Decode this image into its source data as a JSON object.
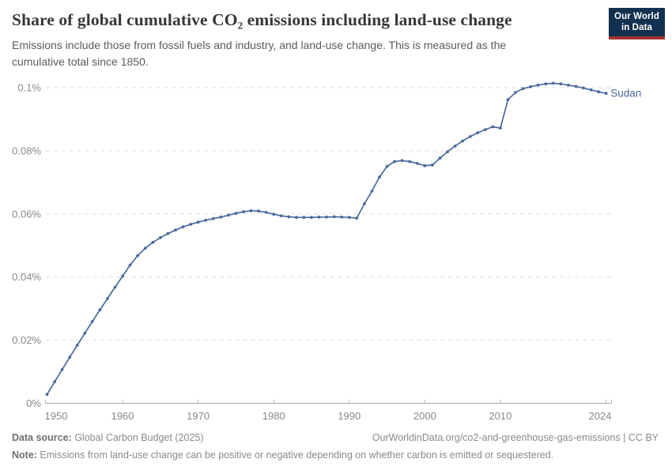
{
  "header": {
    "title": "Share of global cumulative CO₂ emissions including land-use change",
    "subtitle": "Emissions include those from fossil fuels and industry, and land-use change. This is measured as the cumulative total since 1850."
  },
  "logo": {
    "line1": "Our World",
    "line2": "in Data",
    "bg_color": "#12304f",
    "accent_color": "#a63232"
  },
  "chart_data": {
    "type": "line",
    "title": "Share of global cumulative CO₂ emissions including land-use change",
    "entity": "Sudan",
    "unit": "%",
    "grid": "horizontal-dashed",
    "legend_position": "end-of-line-label",
    "xlim": [
      1950,
      2024
    ],
    "ylim": [
      0,
      0.1
    ],
    "x_ticks": [
      1950,
      1960,
      1970,
      1980,
      1990,
      2000,
      2010,
      2024
    ],
    "x_tick_labels": [
      "1950",
      "1960",
      "1970",
      "1980",
      "1990",
      "2000",
      "2010",
      "2024"
    ],
    "y_ticks": [
      0,
      0.02,
      0.04,
      0.06,
      0.08,
      0.1
    ],
    "y_tick_labels": [
      "0%",
      "0.02%",
      "0.04%",
      "0.06%",
      "0.08%",
      "0.1%"
    ],
    "series": [
      {
        "name": "Sudan",
        "color": "#4c6a9c",
        "x": [
          1950,
          1951,
          1952,
          1953,
          1954,
          1955,
          1956,
          1957,
          1958,
          1959,
          1960,
          1961,
          1962,
          1963,
          1964,
          1965,
          1966,
          1967,
          1968,
          1969,
          1970,
          1971,
          1972,
          1973,
          1974,
          1975,
          1976,
          1977,
          1978,
          1979,
          1980,
          1981,
          1982,
          1983,
          1984,
          1985,
          1986,
          1987,
          1988,
          1989,
          1990,
          1991,
          1992,
          1993,
          1994,
          1995,
          1996,
          1997,
          1998,
          1999,
          2000,
          2001,
          2002,
          2003,
          2004,
          2005,
          2006,
          2007,
          2008,
          2009,
          2010,
          2011,
          2012,
          2013,
          2014,
          2015,
          2016,
          2017,
          2018,
          2019,
          2020,
          2021,
          2022,
          2023,
          2024
        ],
        "values": [
          0.0028,
          0.0068,
          0.0107,
          0.0146,
          0.0184,
          0.0222,
          0.0259,
          0.0296,
          0.0332,
          0.0368,
          0.0403,
          0.0438,
          0.0468,
          0.0491,
          0.051,
          0.0525,
          0.0538,
          0.0549,
          0.0559,
          0.0567,
          0.0574,
          0.058,
          0.0585,
          0.059,
          0.0596,
          0.0602,
          0.0607,
          0.061,
          0.0609,
          0.0605,
          0.0599,
          0.0594,
          0.0591,
          0.0589,
          0.0589,
          0.0589,
          0.059,
          0.059,
          0.0591,
          0.059,
          0.0589,
          0.0587,
          0.0632,
          0.0672,
          0.0717,
          0.0751,
          0.0766,
          0.0769,
          0.0766,
          0.076,
          0.0753,
          0.0755,
          0.0777,
          0.0797,
          0.0815,
          0.0831,
          0.0845,
          0.0857,
          0.0867,
          0.0876,
          0.0872,
          0.0962,
          0.0985,
          0.0997,
          0.1003,
          0.1008,
          0.1012,
          0.1014,
          0.1012,
          0.1008,
          0.1004,
          0.0999,
          0.0993,
          0.0987,
          0.0982
        ]
      }
    ]
  },
  "footer": {
    "source_label": "Data source:",
    "source_text": " Global Carbon Budget (2025)",
    "link_text": "OurWorldinData.org/co2-and-greenhouse-gas-emissions | CC BY",
    "note_label": "Note:",
    "note_text": " Emissions from land-use change can be positive or negative depending on whether carbon is emitted or sequestered."
  }
}
